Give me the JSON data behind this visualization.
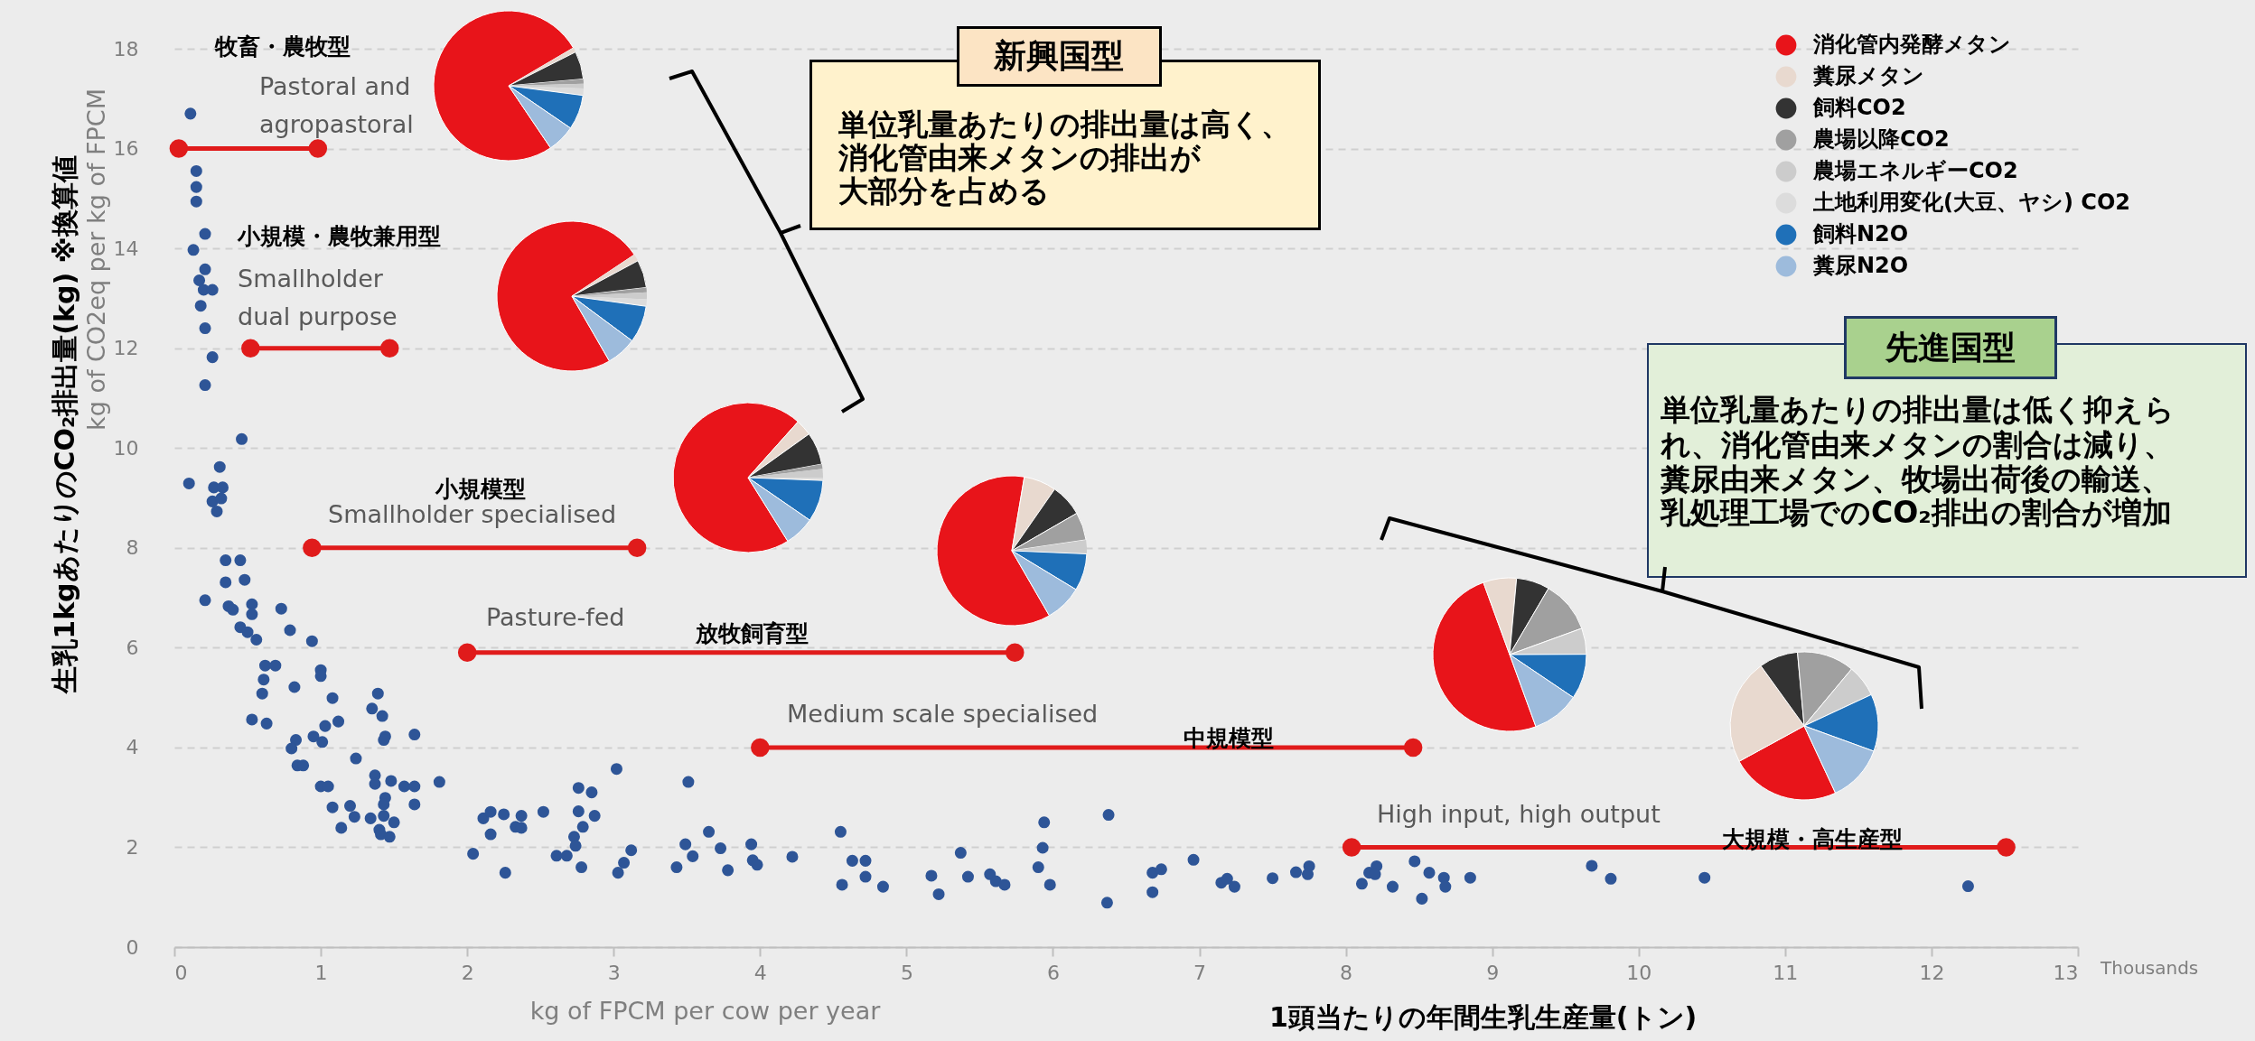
{
  "chart_data": [
    {
      "type": "scatter",
      "xlabel": "kg of FPCM per cow per year",
      "ylabel": "kg of CO2eq per kg of FPCM",
      "xlim": [
        0,
        13
      ],
      "ylim": [
        0,
        18
      ],
      "xticks": [
        0,
        1,
        2,
        3,
        4,
        5,
        6,
        7,
        8,
        9,
        10,
        11,
        12,
        13
      ],
      "yticks": [
        0,
        2,
        4,
        6,
        8,
        10,
        12,
        14,
        16,
        18
      ],
      "grid": "y",
      "marker": "circle",
      "series": [
        {
          "type": "scatter",
          "color": "#2e5597",
          "x": [
            0.11,
            0.15,
            0.15,
            0.15,
            0.21,
            0.13,
            0.21,
            0.17,
            0.2,
            0.26,
            0.18,
            0.21,
            0.26,
            0.21,
            0.46,
            0.1,
            0.31,
            0.27,
            0.33,
            0.26,
            0.32,
            0.29,
            0.35,
            0.45,
            0.35,
            0.48,
            0.21,
            0.37,
            0.4,
            0.53,
            0.53,
            0.73,
            0.45,
            0.5,
            0.56,
            0.79,
            0.94,
            0.62,
            0.69,
            0.61,
            0.6,
            0.82,
            1.0,
            1.0,
            1.08,
            1.39,
            1.35,
            1.42,
            0.53,
            0.63,
            1.12,
            1.03,
            0.95,
            1.01,
            0.83,
            0.8,
            1.44,
            1.43,
            1.64,
            1.24,
            0.84,
            0.88,
            1.37,
            1.37,
            1.48,
            1.0,
            1.05,
            1.57,
            1.64,
            1.81,
            1.44,
            1.43,
            1.08,
            1.2,
            1.64,
            1.23,
            1.34,
            1.43,
            1.5,
            1.4,
            1.14,
            1.41,
            1.47,
            2.04,
            2.11,
            2.16,
            2.25,
            2.16,
            2.26,
            2.37,
            2.33,
            2.37,
            2.52,
            2.76,
            2.85,
            2.76,
            2.87,
            2.79,
            2.73,
            2.74,
            2.61,
            2.68,
            2.78,
            3.02,
            3.12,
            3.07,
            3.03,
            3.43,
            3.51,
            3.49,
            3.54,
            3.65,
            3.73,
            3.78,
            3.94,
            3.95,
            3.98,
            4.22,
            4.55,
            4.63,
            4.72,
            4.56,
            4.72,
            4.84,
            5.17,
            5.22,
            5.37,
            5.42,
            5.57,
            5.61,
            5.67,
            5.94,
            5.93,
            5.9,
            5.98,
            6.38,
            6.37,
            6.68,
            6.74,
            6.68,
            6.96,
            7.15,
            7.19,
            7.24,
            7.5,
            7.66,
            7.75,
            7.74,
            8.11,
            8.16,
            8.21,
            8.2,
            8.32,
            8.47,
            8.52,
            8.57,
            8.67,
            8.68,
            8.85,
            9.68,
            9.81,
            10.45,
            12.25
          ],
          "values": [
            16.7,
            15.55,
            15.23,
            14.94,
            14.29,
            13.97,
            13.58,
            13.36,
            13.17,
            13.17,
            12.85,
            12.4,
            11.82,
            11.26,
            10.18,
            9.29,
            9.62,
            9.21,
            9.21,
            8.93,
            8.99,
            8.73,
            7.75,
            7.75,
            7.31,
            7.36,
            6.95,
            6.83,
            6.76,
            6.87,
            6.67,
            6.78,
            6.41,
            6.31,
            6.16,
            6.35,
            6.13,
            5.64,
            5.64,
            5.36,
            5.08,
            5.21,
            5.55,
            5.43,
            4.99,
            5.08,
            4.78,
            4.63,
            4.56,
            4.48,
            4.52,
            4.43,
            4.22,
            4.11,
            4.15,
            3.98,
            4.22,
            4.15,
            4.26,
            3.78,
            3.64,
            3.64,
            3.44,
            3.27,
            3.33,
            3.22,
            3.22,
            3.22,
            3.22,
            3.31,
            2.99,
            2.86,
            2.8,
            2.83,
            2.86,
            2.61,
            2.58,
            2.63,
            2.5,
            2.35,
            2.39,
            2.26,
            2.21,
            1.87,
            2.58,
            2.71,
            2.66,
            2.26,
            1.49,
            2.63,
            2.41,
            2.39,
            2.71,
            3.19,
            3.1,
            2.72,
            2.63,
            2.41,
            2.21,
            2.03,
            1.83,
            1.83,
            1.6,
            3.57,
            1.94,
            1.69,
            1.49,
            1.6,
            3.31,
            2.06,
            1.82,
            2.31,
            1.98,
            1.54,
            2.06,
            1.74,
            1.65,
            1.81,
            2.31,
            1.73,
            1.73,
            1.25,
            1.41,
            1.21,
            1.43,
            1.06,
            1.89,
            1.41,
            1.46,
            1.32,
            1.25,
            2.5,
            1.99,
            1.6,
            1.25,
            2.65,
            0.89,
            1.49,
            1.56,
            1.1,
            1.75,
            1.29,
            1.37,
            1.21,
            1.38,
            1.5,
            1.62,
            1.46,
            1.27,
            1.49,
            1.62,
            1.46,
            1.21,
            1.72,
            0.97,
            1.49,
            1.39,
            1.21,
            1.39,
            1.63,
            1.37,
            1.39,
            1.22
          ]
        },
        {
          "type": "line",
          "color": "#e01b1b",
          "x": [
            0.03,
            0.98
          ],
          "values": [
            16,
            16
          ]
        },
        {
          "type": "line",
          "color": "#e01b1b",
          "x": [
            0.52,
            1.47
          ],
          "values": [
            12,
            12
          ]
        },
        {
          "type": "line",
          "color": "#e01b1b",
          "x": [
            0.94,
            3.16
          ],
          "values": [
            8,
            8
          ]
        },
        {
          "type": "line",
          "color": "#e01b1b",
          "x": [
            2.0,
            5.74
          ],
          "values": [
            5.9,
            5.9
          ]
        },
        {
          "type": "line",
          "color": "#e01b1b",
          "x": [
            4.0,
            8.46
          ],
          "values": [
            4,
            4
          ]
        },
        {
          "type": "line",
          "color": "#e01b1b",
          "x": [
            8.04,
            12.51
          ],
          "values": [
            2,
            2
          ]
        }
      ],
      "annotations": [
        "生乳1kgあたりのCO₂排出量(kg) ※換算値",
        "1頭当たりの年間生乳生産量(トン)",
        "Thousands",
        "新興国型",
        "単位乳量あたりの排出量は高く、",
        "消化管由来メタンの排出が",
        "大部分を占める",
        "先進国型",
        "単位乳量あたりの排出量は低く抑えら",
        "れ、消化管由来メタンの割合は減り、",
        "糞尿由来メタン、牧場出荷後の輸送、",
        "乳処理工場でのCO₂排出の割合が増加",
        "牧畜・農牧型",
        "Pastoral and\nagropastoral",
        "小規模・農牧兼用型",
        "Smallholder\ndual purpose",
        "小規模型",
        "Smallholder specialised",
        "Pasture-fed",
        "放牧飼育型",
        "Medium scale specialised",
        "中規模型",
        "High input, high output",
        "大規模・高生産型"
      ]
    },
    {
      "type": "pie",
      "legend": "right",
      "categories": [
        "消化管内発酵メタン",
        "糞尿メタン",
        "飼料CO2",
        "農場以降CO2",
        "農場エネルギーCO2",
        "土地利用変化(大豆、ヤシ) CO2",
        "飼料N2O",
        "糞尿N2O"
      ],
      "values": [
        76,
        1,
        6,
        1,
        1,
        1.5,
        7.5,
        6
      ],
      "colors": [
        "#e8141a",
        "#e8d9cf",
        "#333333",
        "#a0a0a0",
        "#cccccc",
        "#dcdcdc",
        "#1f70b8",
        "#9dbbdc"
      ]
    },
    {
      "type": "pie",
      "categories": [
        null,
        null,
        null,
        null,
        null,
        null,
        null,
        null
      ],
      "values": [
        74,
        1.5,
        6,
        1,
        1.5,
        1.5,
        8,
        6.5
      ],
      "colors": [
        "#e8141a",
        "#e8d9cf",
        "#333333",
        "#a0a0a0",
        "#cccccc",
        "#dcdcdc",
        "#1f70b8",
        "#9dbbdc"
      ]
    },
    {
      "type": "pie",
      "categories": [
        null,
        null,
        null,
        null,
        null,
        null,
        null,
        null
      ],
      "values": [
        70.5,
        3.5,
        7,
        1,
        2,
        0.5,
        9,
        6.5
      ],
      "colors": [
        "#e8141a",
        "#e8d9cf",
        "#333333",
        "#a0a0a0",
        "#cccccc",
        "#dcdcdc",
        "#1f70b8",
        "#9dbbdc"
      ]
    },
    {
      "type": "pie",
      "categories": [
        null,
        null,
        null,
        null,
        null,
        null,
        null,
        null
      ],
      "values": [
        61,
        7,
        7,
        6,
        3,
        0,
        8,
        8
      ],
      "colors": [
        "#e8141a",
        "#e8d9cf",
        "#333333",
        "#a0a0a0",
        "#cccccc",
        "#dcdcdc",
        "#1f70b8",
        "#9dbbdc"
      ]
    },
    {
      "type": "pie",
      "categories": [
        null,
        null,
        null,
        null,
        null,
        null,
        null,
        null
      ],
      "values": [
        50,
        7,
        7,
        11,
        5.5,
        null,
        9.5,
        10
      ],
      "colors": [
        "#e8141a",
        "#e8d9cf",
        "#333333",
        "#a0a0a0",
        "#cccccc",
        "#dcdcdc",
        "#1f70b8",
        "#9dbbdc"
      ]
    },
    {
      "type": "pie",
      "categories": [
        null,
        null,
        null,
        null,
        null,
        null,
        null,
        null
      ],
      "values": [
        24,
        23,
        8.5,
        12.5,
        7,
        0,
        12.5,
        12.5
      ],
      "colors": [
        "#e8141a",
        "#e8d9cf",
        "#333333",
        "#a0a0a0",
        "#cccccc",
        "#dcdcdc",
        "#1f70b8",
        "#9dbbdc"
      ]
    }
  ]
}
